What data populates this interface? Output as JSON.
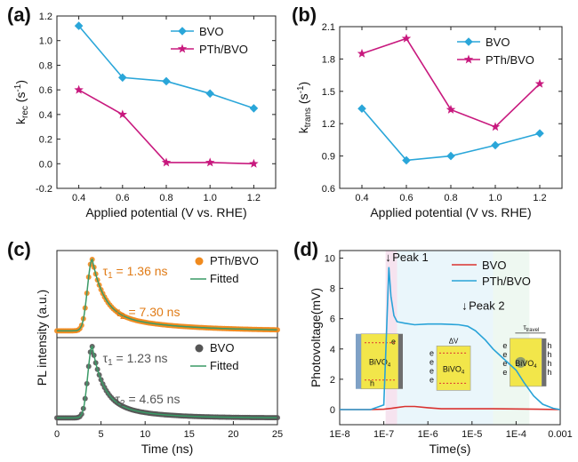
{
  "chart_data": [
    {
      "panel": "(a)",
      "type": "line",
      "xlabel": "Applied potential (V vs. RHE)",
      "ylabel": "k",
      "ylabel_sub": "rec",
      "ylabel_unit": " (s",
      "ylabel_unit_sup": "-1",
      "ylabel_unit_close": ")",
      "xlim": [
        0.3,
        1.3
      ],
      "ylim": [
        -0.2,
        1.2
      ],
      "xticks": [
        "0.4",
        "0.6",
        "0.8",
        "1.0",
        "1.2"
      ],
      "yticks": [
        "-0.2",
        "0.0",
        "0.2",
        "0.4",
        "0.6",
        "0.8",
        "1.0",
        "1.2"
      ],
      "legend_position": "top-right",
      "x": [
        0.4,
        0.6,
        0.8,
        1.0,
        1.2
      ],
      "series": [
        {
          "name": "BVO",
          "marker": "diamond",
          "color": "#2aa6d9",
          "values": [
            1.12,
            0.7,
            0.67,
            0.57,
            0.45
          ]
        },
        {
          "name": "PTh/BVO",
          "marker": "star",
          "color": "#c8197e",
          "values": [
            0.6,
            0.4,
            0.01,
            0.01,
            0.0
          ]
        }
      ]
    },
    {
      "panel": "(b)",
      "type": "line",
      "xlabel": "Applied potential (V vs. RHE)",
      "ylabel": "k",
      "ylabel_sub": "trans",
      "ylabel_unit": " (s",
      "ylabel_unit_sup": "-1",
      "ylabel_unit_close": ")",
      "xlim": [
        0.3,
        1.3
      ],
      "ylim": [
        0.6,
        2.1
      ],
      "xticks": [
        "0.4",
        "0.6",
        "0.8",
        "1.0",
        "1.2"
      ],
      "yticks": [
        "0.6",
        "0.9",
        "1.2",
        "1.5",
        "1.8",
        "2.1"
      ],
      "legend_position": "top-right",
      "x": [
        0.4,
        0.6,
        0.8,
        1.0,
        1.2
      ],
      "series": [
        {
          "name": "BVO",
          "marker": "diamond",
          "color": "#2aa6d9",
          "values": [
            1.34,
            0.86,
            0.9,
            1.0,
            1.11
          ]
        },
        {
          "name": "PTh/BVO",
          "marker": "star",
          "color": "#c8197e",
          "values": [
            1.85,
            1.99,
            1.33,
            1.17,
            1.57
          ]
        }
      ]
    },
    {
      "panel": "(c)",
      "type": "scatter",
      "xlabel": "Time (ns)",
      "ylabel": "PL intensity (a.u.)",
      "xlim": [
        0,
        25
      ],
      "xticks": [
        "0",
        "5",
        "10",
        "15",
        "20",
        "25"
      ],
      "stacked_panels": [
        {
          "name": "PTh/BVO",
          "fit_name": "Fitted",
          "color": "#f08a1e",
          "fit_color": "#3a9a66",
          "tau1_label": "τ",
          "tau1_sub": "1",
          "tau1_text": " = 1.36 ns",
          "tau2_label": "τ",
          "tau2_sub": "2",
          "tau2_text": " = 7.30 ns",
          "peak_time_ns": 4.0,
          "rise_ns": 0.75,
          "a1": 0.75,
          "tau1_ns": 1.36,
          "a2": 0.25,
          "tau2_ns": 7.3,
          "baseline": 0.02
        },
        {
          "name": "BVO",
          "fit_name": "Fitted",
          "color": "#555555",
          "fit_color": "#3a9a66",
          "tau1_label": "τ",
          "tau1_sub": "1",
          "tau1_text": " = 1.23 ns",
          "tau2_label": "τ",
          "tau2_sub": "2",
          "tau2_text": " = 4.65 ns",
          "peak_time_ns": 4.0,
          "rise_ns": 0.7,
          "a1": 0.75,
          "tau1_ns": 1.23,
          "a2": 0.25,
          "tau2_ns": 4.65,
          "baseline": 0.02
        }
      ]
    },
    {
      "panel": "(d)",
      "type": "line",
      "xlabel": "Time(s)",
      "ylabel": "Photovoltage(mV)",
      "xscale": "log",
      "xlim": [
        1e-08,
        0.001
      ],
      "ylim": [
        -1,
        10.5
      ],
      "xticks": [
        "1E-8",
        "1E-7",
        "1E-6",
        "1E-5",
        "1E-4",
        "0.001"
      ],
      "yticks": [
        "0",
        "2",
        "4",
        "6",
        "8",
        "10"
      ],
      "legend_position": "top-right",
      "annotations": [
        "Peak 1",
        "Peak 2"
      ],
      "inset_labels": {
        "left": {
          "material": "BiVO",
          "material_sub": "4",
          "e": "e",
          "h": "h"
        },
        "middle": {
          "material": "BiVO",
          "material_sub": "4",
          "delta": "ΔV",
          "e": "e"
        },
        "right": {
          "material": "BiVO",
          "material_sub": "4",
          "tau": "τ",
          "tau_sub": "travel",
          "e": "e",
          "h": "h"
        }
      },
      "series": [
        {
          "name": "BVO",
          "color": "#d9322f",
          "x": [
            1e-08,
            5e-08,
            1e-07,
            1.5e-07,
            2e-07,
            3e-07,
            5e-07,
            1e-06,
            2e-06,
            5e-06,
            1e-05,
            3e-05,
            0.0001,
            0.0003,
            0.001
          ],
          "y": [
            0.0,
            0.0,
            0.02,
            0.08,
            0.13,
            0.2,
            0.2,
            0.12,
            0.05,
            0.05,
            0.05,
            0.05,
            0.04,
            0.02,
            0.0
          ]
        },
        {
          "name": "PTh/BVO",
          "color": "#29a3d8",
          "x": [
            1e-08,
            5e-08,
            1e-07,
            1.15e-07,
            1.3e-07,
            1.45e-07,
            1.7e-07,
            2e-07,
            3e-07,
            5e-07,
            1e-06,
            2e-06,
            5e-06,
            8e-06,
            1.2e-05,
            2e-05,
            3e-05,
            5e-05,
            0.0001,
            0.00015,
            0.00025,
            0.0004,
            0.0007,
            0.001
          ],
          "y": [
            0.0,
            0.0,
            0.3,
            5.0,
            9.4,
            7.5,
            6.2,
            5.8,
            5.7,
            5.6,
            5.65,
            5.65,
            5.6,
            5.5,
            5.2,
            4.6,
            4.0,
            3.4,
            2.6,
            1.8,
            0.9,
            0.35,
            0.08,
            0.0
          ]
        }
      ]
    }
  ]
}
